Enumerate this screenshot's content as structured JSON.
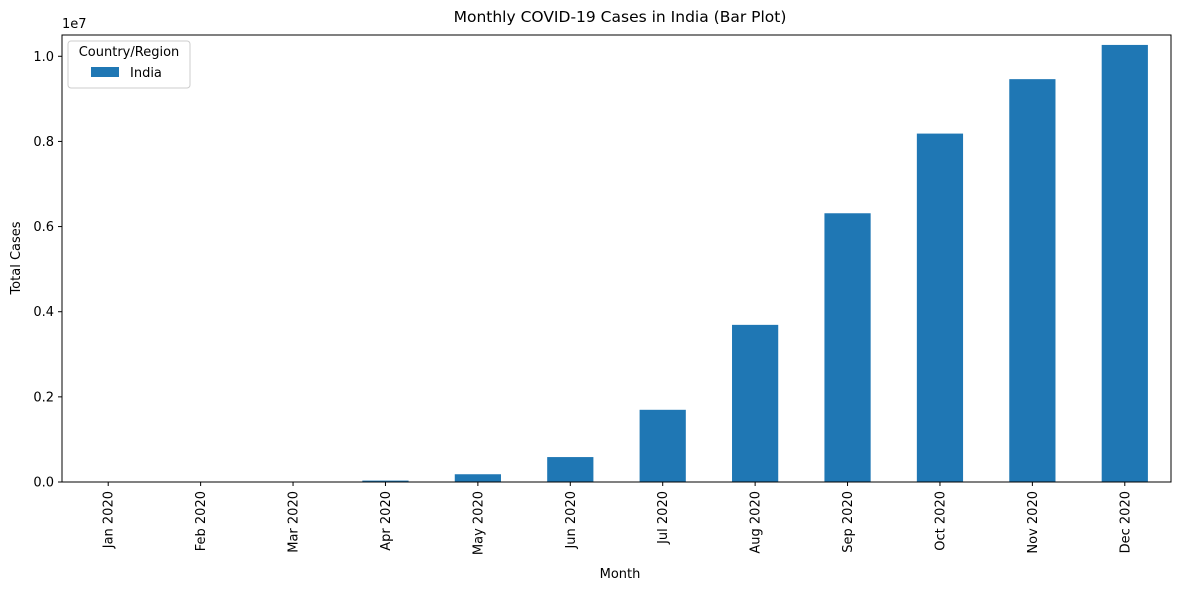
{
  "chart_data": {
    "type": "bar",
    "title": "Monthly COVID-19 Cases in India (Bar Plot)",
    "xlabel": "Month",
    "ylabel": "Total Cases",
    "y_offset_label": "1e7",
    "categories": [
      "Jan 2020",
      "Feb 2020",
      "Mar 2020",
      "Apr 2020",
      "May 2020",
      "Jun 2020",
      "Jul 2020",
      "Aug 2020",
      "Sep 2020",
      "Oct 2020",
      "Nov 2020",
      "Dec 2020"
    ],
    "series": [
      {
        "name": "India",
        "color": "#1f77b4",
        "values": [
          3,
          3,
          1397,
          33050,
          182143,
          585493,
          1695988,
          3691166,
          6312584,
          8184082,
          9462809,
          10266674
        ]
      }
    ],
    "ylim": [
      0,
      10500000
    ],
    "y_ticks": [
      0,
      2000000,
      4000000,
      6000000,
      8000000,
      10000000
    ],
    "y_tick_labels": [
      "0.0",
      "0.2",
      "0.4",
      "0.6",
      "0.8",
      "1.0"
    ],
    "legend": {
      "title": "Country/Region",
      "placement": "upper-left"
    },
    "grid": false
  }
}
